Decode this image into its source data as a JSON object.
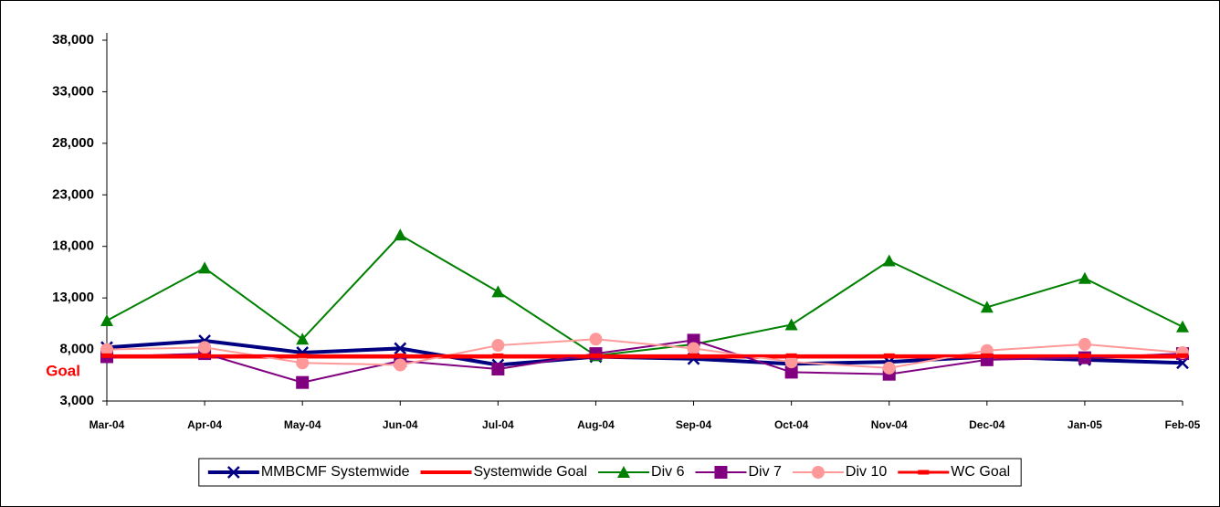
{
  "chart_data": {
    "type": "line",
    "annotation": "Goal",
    "categories": [
      "Mar-04",
      "Apr-04",
      "May-04",
      "Jun-04",
      "Jul-04",
      "Aug-04",
      "Sep-04",
      "Oct-04",
      "Nov-04",
      "Dec-04",
      "Jan-05",
      "Feb-05"
    ],
    "ylim": [
      3000,
      38000
    ],
    "yticks": [
      {
        "value": 3000,
        "label": "3,000"
      },
      {
        "value": 8000,
        "label": "8,000"
      },
      {
        "value": 13000,
        "label": "13,000"
      },
      {
        "value": 18000,
        "label": "18,000"
      },
      {
        "value": 23000,
        "label": "23,000"
      },
      {
        "value": 28000,
        "label": "28,000"
      },
      {
        "value": 33000,
        "label": "33,000"
      },
      {
        "value": 38000,
        "label": "38,000"
      }
    ],
    "grid": false,
    "legend": "bottom",
    "series": [
      {
        "name": "MMBCMF Systemwide",
        "color": "#000080",
        "marker": "x",
        "width": 4,
        "values": [
          8200,
          8850,
          7700,
          8100,
          6500,
          7300,
          7100,
          6600,
          6800,
          7300,
          7000,
          6700
        ]
      },
      {
        "name": "Systemwide Goal",
        "color": "#ff0000",
        "marker": "none",
        "width": 4,
        "values": [
          7300,
          7300,
          7300,
          7300,
          7300,
          7300,
          7300,
          7300,
          7300,
          7300,
          7300,
          7300
        ]
      },
      {
        "name": "Div 6",
        "color": "#008000",
        "marker": "triangle",
        "width": 2,
        "values": [
          10800,
          15900,
          9000,
          19100,
          13600,
          7400,
          8500,
          10400,
          16600,
          12100,
          14900,
          10200
        ]
      },
      {
        "name": "Div 7",
        "color": "#800080",
        "marker": "square",
        "width": 2,
        "values": [
          7300,
          7600,
          4800,
          6900,
          6100,
          7600,
          8900,
          5800,
          5600,
          7000,
          7200,
          7600
        ]
      },
      {
        "name": "Div 10",
        "color": "#ff9999",
        "marker": "circle",
        "width": 2,
        "values": [
          8000,
          8200,
          6700,
          6500,
          8400,
          9000,
          8100,
          6800,
          6200,
          7900,
          8500,
          7700
        ]
      },
      {
        "name": "WC  Goal",
        "color": "#ff0000",
        "marker": "dash",
        "width": 3,
        "values": [
          7400,
          7400,
          7400,
          7400,
          7400,
          7400,
          7400,
          7400,
          7400,
          7400,
          7400,
          7400
        ]
      }
    ]
  }
}
